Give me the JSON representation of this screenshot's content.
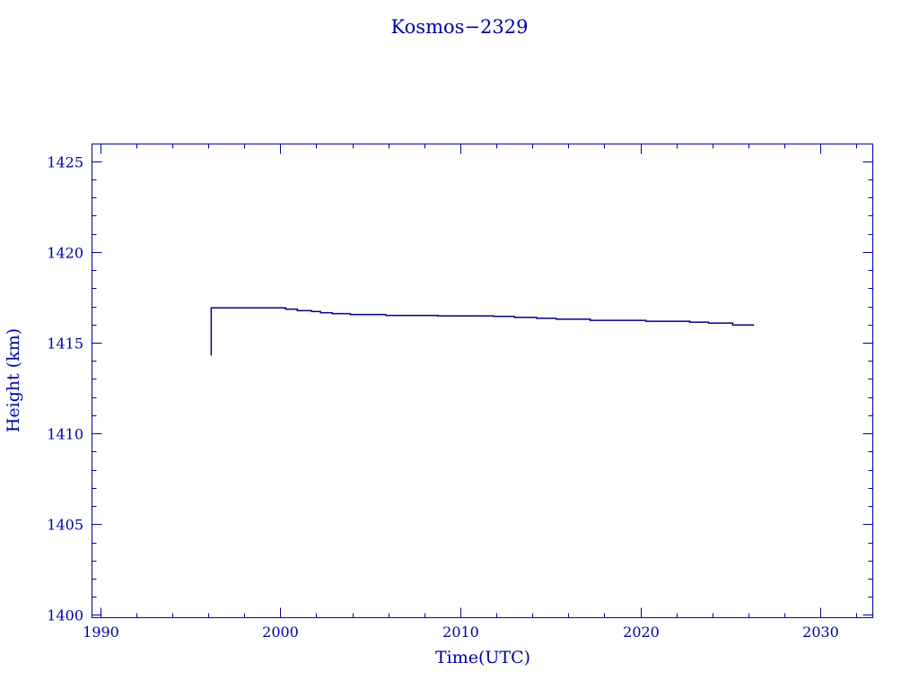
{
  "chart_data": {
    "type": "line",
    "title": "Kosmos−2329",
    "xlabel": "Time(UTC)",
    "ylabel": "Height (km)",
    "xlim": [
      1989.55,
      2032.9
    ],
    "ylim": [
      1399.85,
      1425.95
    ],
    "xticks": [
      1990,
      2000,
      2010,
      2020,
      2030
    ],
    "yticks": [
      1400,
      1405,
      1410,
      1415,
      1420,
      1425
    ],
    "x_minor_step": 2,
    "y_minor_step": 1,
    "grid": false,
    "color": "#0000a8",
    "series": [
      {
        "x": [
          1996.17,
          1996.17,
          1999.4,
          2000.3,
          2000.95,
          2001.74,
          2002.24,
          2002.89,
          2003.88,
          2005.87,
          2008.76,
          2011.84,
          2012.99,
          2014.23,
          2015.32,
          2017.21,
          2020.3,
          2022.74,
          2023.78,
          2025.12,
          2026.27
        ],
        "y": [
          1414.3,
          1416.92,
          1416.92,
          1416.85,
          1416.77,
          1416.72,
          1416.65,
          1416.6,
          1416.55,
          1416.5,
          1416.48,
          1416.45,
          1416.4,
          1416.35,
          1416.3,
          1416.23,
          1416.18,
          1416.13,
          1416.08,
          1415.98,
          1415.94
        ]
      }
    ]
  }
}
